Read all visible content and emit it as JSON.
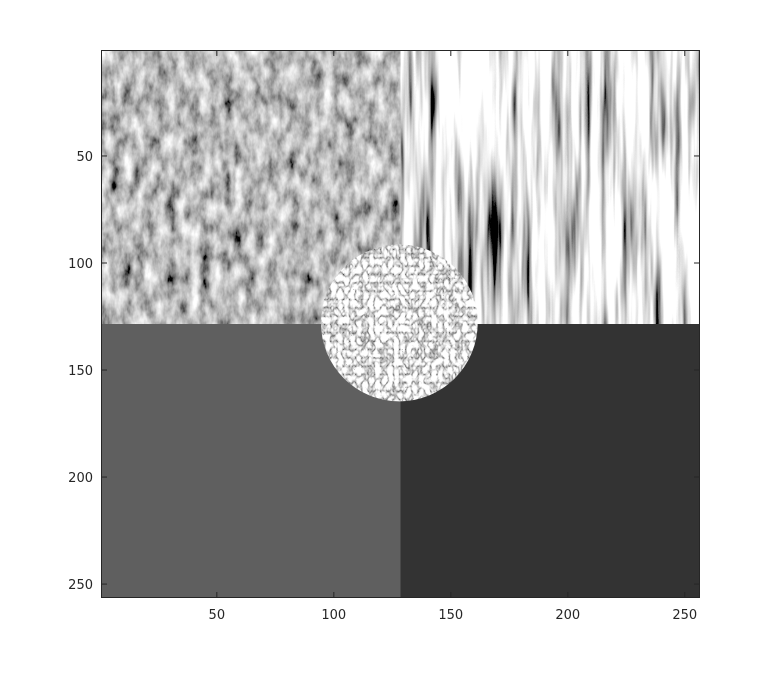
{
  "figure": {
    "x_ticks": [
      "50",
      "100",
      "150",
      "200",
      "250"
    ],
    "y_ticks": [
      "50",
      "100",
      "150",
      "200",
      "250"
    ],
    "x_range": [
      0.5,
      256.5
    ],
    "y_range": [
      0.5,
      256.5
    ],
    "y_direction": "reverse"
  },
  "image": {
    "colormap": "gray",
    "quadrants": [
      {
        "name": "top-left",
        "content": "grass-texture"
      },
      {
        "name": "top-right",
        "content": "vertical-bark-texture"
      },
      {
        "name": "bottom-left",
        "content": "flat-gray",
        "color": "#5f5f5f"
      },
      {
        "name": "bottom-right",
        "content": "flat-dark-gray",
        "color": "#333333"
      }
    ],
    "center_disc": {
      "content": "woven-texture",
      "center": [
        128,
        128
      ],
      "radius": 35
    }
  }
}
